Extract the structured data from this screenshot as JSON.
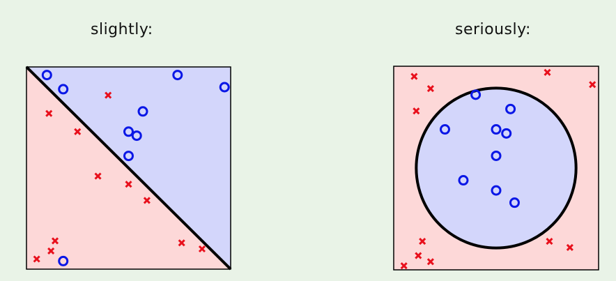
{
  "panels": [
    {
      "title": "slightly:",
      "boundary": "line",
      "colors": {
        "region_pos": "#d3d6fb",
        "region_neg": "#fdd8d8",
        "circle_mark": "#0a17e6",
        "cross_mark": "#e8101c",
        "boundary": "#000000"
      },
      "circles": [
        [
          0.1,
          0.04
        ],
        [
          0.18,
          0.11
        ],
        [
          0.74,
          0.04
        ],
        [
          0.97,
          0.1
        ],
        [
          0.57,
          0.22
        ],
        [
          0.5,
          0.32
        ],
        [
          0.54,
          0.34
        ],
        [
          0.5,
          0.44
        ],
        [
          0.18,
          0.96
        ]
      ],
      "crosses": [
        [
          0.4,
          0.14
        ],
        [
          0.11,
          0.23
        ],
        [
          0.25,
          0.32
        ],
        [
          0.35,
          0.54
        ],
        [
          0.5,
          0.58
        ],
        [
          0.59,
          0.66
        ],
        [
          0.14,
          0.86
        ],
        [
          0.12,
          0.91
        ],
        [
          0.05,
          0.95
        ],
        [
          0.76,
          0.87
        ],
        [
          0.86,
          0.9
        ]
      ]
    },
    {
      "title": "seriously:",
      "boundary": "circle",
      "colors": {
        "region_pos": "#d3d6fb",
        "region_neg": "#fdd8d8",
        "circle_mark": "#0a17e6",
        "cross_mark": "#e8101c",
        "boundary": "#000000"
      },
      "circles": [
        [
          0.4,
          0.14
        ],
        [
          0.57,
          0.21
        ],
        [
          0.25,
          0.31
        ],
        [
          0.5,
          0.31
        ],
        [
          0.55,
          0.33
        ],
        [
          0.5,
          0.44
        ],
        [
          0.34,
          0.56
        ],
        [
          0.5,
          0.61
        ],
        [
          0.59,
          0.67
        ]
      ],
      "crosses": [
        [
          0.1,
          0.05
        ],
        [
          0.18,
          0.11
        ],
        [
          0.75,
          0.03
        ],
        [
          0.97,
          0.09
        ],
        [
          0.11,
          0.22
        ],
        [
          0.14,
          0.86
        ],
        [
          0.12,
          0.93
        ],
        [
          0.18,
          0.96
        ],
        [
          0.05,
          0.98
        ],
        [
          0.76,
          0.86
        ],
        [
          0.86,
          0.89
        ]
      ]
    }
  ]
}
